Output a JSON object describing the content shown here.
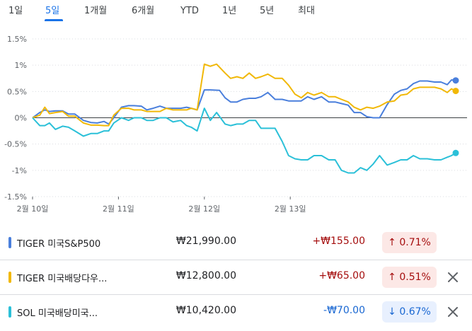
{
  "tabs": [
    {
      "label": "1일",
      "active": false
    },
    {
      "label": "5일",
      "active": true
    },
    {
      "label": "1개월",
      "active": false
    },
    {
      "label": "6개월",
      "active": false
    },
    {
      "label": "YTD",
      "active": false
    },
    {
      "label": "1년",
      "active": false
    },
    {
      "label": "5년",
      "active": false
    },
    {
      "label": "최대",
      "active": false
    }
  ],
  "chart_data": {
    "type": "line",
    "y_unit": "%",
    "ylim": [
      -1.5,
      1.5
    ],
    "yticks": [
      1.5,
      1,
      0.5,
      0,
      -0.5,
      -1,
      -1.5
    ],
    "ytick_labels": [
      "1.5%",
      "1%",
      "0.5%",
      "0%",
      "-0.5%",
      "-1%",
      "-1.5%"
    ],
    "xlim": [
      0,
      100
    ],
    "xticks": [
      {
        "x": 0,
        "label": "2월 10일"
      },
      {
        "x": 20.3,
        "label": "2월 11일"
      },
      {
        "x": 40.6,
        "label": "2월 12일"
      },
      {
        "x": 60.9,
        "label": "2월 13일"
      }
    ],
    "grid": "horizontal-dotted",
    "series": [
      {
        "name": "TIGER 미국S&P500",
        "color": "#4a7fdc",
        "points": [
          [
            0,
            0.0
          ],
          [
            1.7,
            0.1
          ],
          [
            2.9,
            0.15
          ],
          [
            4.0,
            0.12
          ],
          [
            5.4,
            0.13
          ],
          [
            7.1,
            0.13
          ],
          [
            8.5,
            0.07
          ],
          [
            10.0,
            0.07
          ],
          [
            12.0,
            -0.05
          ],
          [
            13.8,
            -0.09
          ],
          [
            15.3,
            -0.1
          ],
          [
            16.9,
            -0.07
          ],
          [
            18.0,
            -0.12
          ],
          [
            19.2,
            0.0
          ],
          [
            21.0,
            0.2
          ],
          [
            22.7,
            0.23
          ],
          [
            24.0,
            0.23
          ],
          [
            25.7,
            0.22
          ],
          [
            27.0,
            0.15
          ],
          [
            28.5,
            0.18
          ],
          [
            30.1,
            0.22
          ],
          [
            31.6,
            0.18
          ],
          [
            33.2,
            0.18
          ],
          [
            35.0,
            0.18
          ],
          [
            36.4,
            0.2
          ],
          [
            37.5,
            0.18
          ],
          [
            38.9,
            0.15
          ],
          [
            40.6,
            0.53
          ],
          [
            42.0,
            0.53
          ],
          [
            44.2,
            0.52
          ],
          [
            45.5,
            0.38
          ],
          [
            46.8,
            0.3
          ],
          [
            48.3,
            0.3
          ],
          [
            49.7,
            0.35
          ],
          [
            51.2,
            0.37
          ],
          [
            52.7,
            0.37
          ],
          [
            54.0,
            0.4
          ],
          [
            55.6,
            0.48
          ],
          [
            57.3,
            0.35
          ],
          [
            59.0,
            0.35
          ],
          [
            60.5,
            0.32
          ],
          [
            62.0,
            0.32
          ],
          [
            63.5,
            0.32
          ],
          [
            65.0,
            0.4
          ],
          [
            66.5,
            0.35
          ],
          [
            68.3,
            0.4
          ],
          [
            70.0,
            0.3
          ],
          [
            71.5,
            0.3
          ],
          [
            73.0,
            0.27
          ],
          [
            74.6,
            0.24
          ],
          [
            76.0,
            0.1
          ],
          [
            77.5,
            0.1
          ],
          [
            79.0,
            0.02
          ],
          [
            80.5,
            0.0
          ],
          [
            82.0,
            0.0
          ],
          [
            83.8,
            0.25
          ],
          [
            85.5,
            0.45
          ],
          [
            87.0,
            0.52
          ],
          [
            88.5,
            0.55
          ],
          [
            90.0,
            0.65
          ],
          [
            91.5,
            0.7
          ],
          [
            93.3,
            0.7
          ],
          [
            95.0,
            0.68
          ],
          [
            96.5,
            0.68
          ],
          [
            98.0,
            0.63
          ],
          [
            99.0,
            0.72
          ],
          [
            100,
            0.71
          ]
        ]
      },
      {
        "name": "TIGER 미국배당다우...",
        "color": "#f1b807",
        "points": [
          [
            0,
            0.0
          ],
          [
            1.7,
            0.05
          ],
          [
            2.9,
            0.2
          ],
          [
            4.0,
            0.08
          ],
          [
            5.4,
            0.1
          ],
          [
            7.1,
            0.12
          ],
          [
            8.5,
            0.03
          ],
          [
            10.0,
            0.03
          ],
          [
            12.0,
            -0.1
          ],
          [
            13.8,
            -0.14
          ],
          [
            15.3,
            -0.14
          ],
          [
            16.9,
            -0.15
          ],
          [
            18.0,
            -0.15
          ],
          [
            19.2,
            0.05
          ],
          [
            21.0,
            0.18
          ],
          [
            22.7,
            0.18
          ],
          [
            24.0,
            0.15
          ],
          [
            25.7,
            0.15
          ],
          [
            27.0,
            0.12
          ],
          [
            28.5,
            0.12
          ],
          [
            30.1,
            0.12
          ],
          [
            31.6,
            0.18
          ],
          [
            33.2,
            0.15
          ],
          [
            35.0,
            0.15
          ],
          [
            36.4,
            0.15
          ],
          [
            37.5,
            0.18
          ],
          [
            38.9,
            0.15
          ],
          [
            40.6,
            1.02
          ],
          [
            42.0,
            0.98
          ],
          [
            43.5,
            1.02
          ],
          [
            45.5,
            0.85
          ],
          [
            46.8,
            0.75
          ],
          [
            48.3,
            0.78
          ],
          [
            49.7,
            0.75
          ],
          [
            51.2,
            0.85
          ],
          [
            52.7,
            0.75
          ],
          [
            54.0,
            0.78
          ],
          [
            55.6,
            0.83
          ],
          [
            57.3,
            0.75
          ],
          [
            59.0,
            0.75
          ],
          [
            60.5,
            0.62
          ],
          [
            62.0,
            0.45
          ],
          [
            63.5,
            0.38
          ],
          [
            65.0,
            0.48
          ],
          [
            66.5,
            0.43
          ],
          [
            68.3,
            0.48
          ],
          [
            70.0,
            0.4
          ],
          [
            71.5,
            0.4
          ],
          [
            73.0,
            0.35
          ],
          [
            74.6,
            0.3
          ],
          [
            76.0,
            0.2
          ],
          [
            77.5,
            0.15
          ],
          [
            79.0,
            0.2
          ],
          [
            80.5,
            0.18
          ],
          [
            82.0,
            0.22
          ],
          [
            83.8,
            0.3
          ],
          [
            85.5,
            0.32
          ],
          [
            87.0,
            0.43
          ],
          [
            88.5,
            0.45
          ],
          [
            90.0,
            0.55
          ],
          [
            91.5,
            0.58
          ],
          [
            93.3,
            0.58
          ],
          [
            95.0,
            0.58
          ],
          [
            96.5,
            0.55
          ],
          [
            98.0,
            0.48
          ],
          [
            99.0,
            0.55
          ],
          [
            100,
            0.51
          ]
        ]
      },
      {
        "name": "SOL 미국배당미국...",
        "color": "#2bc0d8",
        "points": [
          [
            0,
            0.0
          ],
          [
            1.7,
            -0.15
          ],
          [
            2.9,
            -0.15
          ],
          [
            4.0,
            -0.1
          ],
          [
            5.4,
            -0.22
          ],
          [
            7.1,
            -0.16
          ],
          [
            8.5,
            -0.18
          ],
          [
            10.0,
            -0.25
          ],
          [
            12.0,
            -0.35
          ],
          [
            13.8,
            -0.3
          ],
          [
            15.3,
            -0.3
          ],
          [
            16.9,
            -0.25
          ],
          [
            18.0,
            -0.25
          ],
          [
            19.2,
            -0.1
          ],
          [
            21.0,
            0.0
          ],
          [
            22.7,
            -0.05
          ],
          [
            24.0,
            0.0
          ],
          [
            25.7,
            0.0
          ],
          [
            27.0,
            -0.05
          ],
          [
            28.5,
            -0.05
          ],
          [
            30.1,
            0.0
          ],
          [
            31.6,
            0.0
          ],
          [
            33.2,
            -0.08
          ],
          [
            35.0,
            -0.05
          ],
          [
            36.4,
            -0.15
          ],
          [
            37.5,
            -0.18
          ],
          [
            38.9,
            -0.25
          ],
          [
            40.6,
            0.18
          ],
          [
            42.0,
            -0.05
          ],
          [
            43.5,
            0.1
          ],
          [
            45.5,
            -0.12
          ],
          [
            46.8,
            -0.15
          ],
          [
            48.3,
            -0.12
          ],
          [
            49.7,
            -0.12
          ],
          [
            51.2,
            -0.05
          ],
          [
            52.7,
            -0.05
          ],
          [
            54.0,
            -0.2
          ],
          [
            55.6,
            -0.2
          ],
          [
            57.3,
            -0.2
          ],
          [
            59.0,
            -0.45
          ],
          [
            60.5,
            -0.72
          ],
          [
            62.0,
            -0.78
          ],
          [
            63.5,
            -0.8
          ],
          [
            65.0,
            -0.8
          ],
          [
            66.5,
            -0.72
          ],
          [
            68.3,
            -0.72
          ],
          [
            70.0,
            -0.8
          ],
          [
            71.5,
            -0.8
          ],
          [
            73.0,
            -1.0
          ],
          [
            74.6,
            -1.05
          ],
          [
            76.0,
            -1.05
          ],
          [
            77.5,
            -0.95
          ],
          [
            79.0,
            -1.0
          ],
          [
            80.5,
            -0.88
          ],
          [
            82.0,
            -0.72
          ],
          [
            83.8,
            -0.9
          ],
          [
            85.5,
            -0.85
          ],
          [
            87.0,
            -0.8
          ],
          [
            88.5,
            -0.8
          ],
          [
            90.0,
            -0.72
          ],
          [
            91.5,
            -0.78
          ],
          [
            93.3,
            -0.78
          ],
          [
            95.0,
            -0.8
          ],
          [
            96.5,
            -0.8
          ],
          [
            98.0,
            -0.75
          ],
          [
            99.0,
            -0.72
          ],
          [
            100,
            -0.67
          ]
        ]
      }
    ]
  },
  "rows": [
    {
      "name": "TIGER 미국S&P500",
      "color": "#4a7fdc",
      "price": "₩21,990.00",
      "change": "+₩155.00",
      "pct": "0.71%",
      "arrow": "↑",
      "dir": "up",
      "closable": false
    },
    {
      "name": "TIGER 미국배당다우...",
      "color": "#f1b807",
      "price": "₩12,800.00",
      "change": "+₩65.00",
      "pct": "0.51%",
      "arrow": "↑",
      "dir": "up",
      "closable": true
    },
    {
      "name": "SOL 미국배당미국...",
      "color": "#2bc0d8",
      "price": "₩10,420.00",
      "change": "-₩70.00",
      "pct": "0.67%",
      "arrow": "↓",
      "dir": "down",
      "closable": true
    }
  ]
}
